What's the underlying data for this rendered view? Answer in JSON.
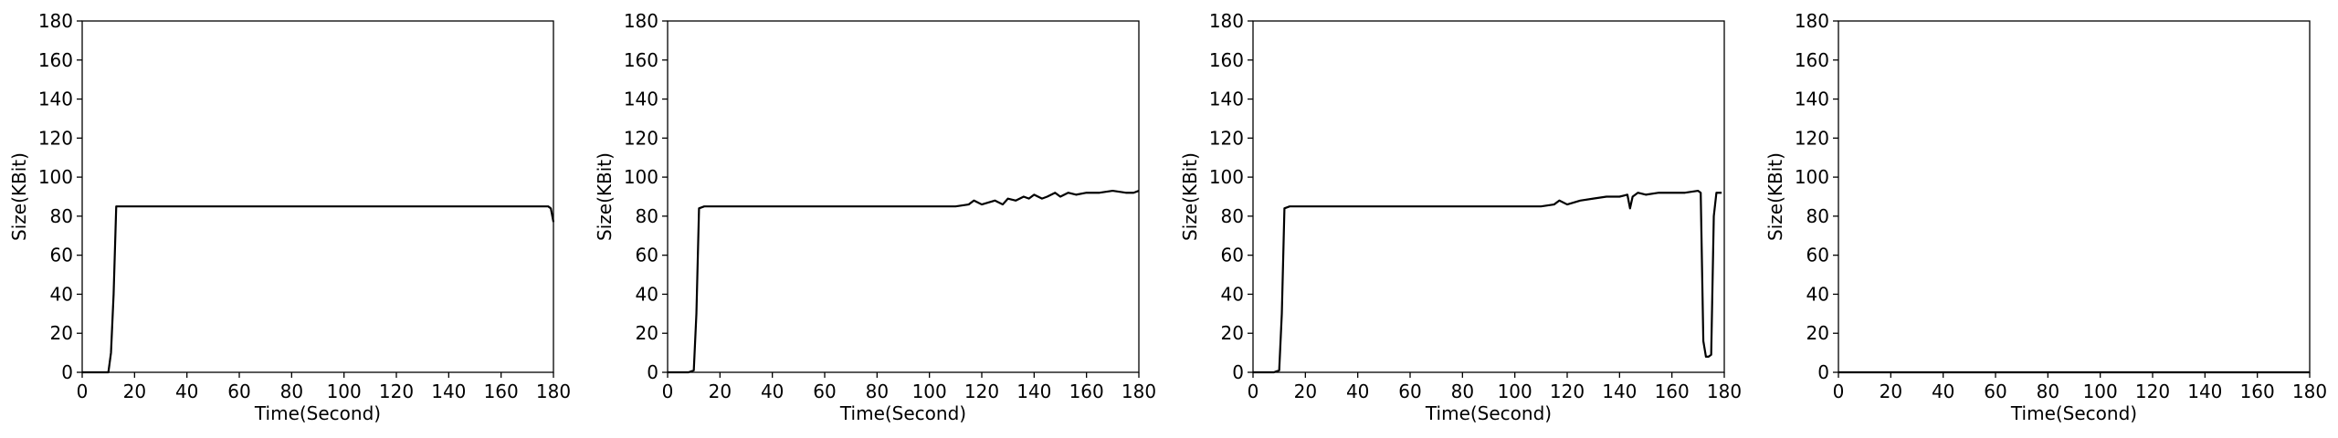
{
  "chart_data": [
    {
      "type": "line",
      "xlabel": "Time(Second)",
      "ylabel": "Size(KBit)",
      "xlim": [
        0,
        180
      ],
      "ylim": [
        0,
        180
      ],
      "xticks": [
        0,
        20,
        40,
        60,
        80,
        100,
        120,
        140,
        160,
        180
      ],
      "yticks": [
        0,
        20,
        40,
        60,
        80,
        100,
        120,
        140,
        160,
        180
      ],
      "grid": false,
      "series": [
        {
          "color": "#000000",
          "x": [
            0,
            2,
            4,
            6,
            8,
            10,
            11,
            12,
            13,
            20,
            40,
            60,
            80,
            100,
            120,
            140,
            160,
            175,
            178,
            179,
            180
          ],
          "y": [
            0,
            0,
            0,
            0,
            0,
            0,
            10,
            40,
            85,
            85,
            85,
            85,
            85,
            85,
            85,
            85,
            85,
            85,
            85,
            84,
            77
          ]
        }
      ]
    },
    {
      "type": "line",
      "xlabel": "Time(Second)",
      "ylabel": "Size(KBit)",
      "xlim": [
        0,
        180
      ],
      "ylim": [
        0,
        180
      ],
      "xticks": [
        0,
        20,
        40,
        60,
        80,
        100,
        120,
        140,
        160,
        180
      ],
      "yticks": [
        0,
        20,
        40,
        60,
        80,
        100,
        120,
        140,
        160,
        180
      ],
      "grid": false,
      "series": [
        {
          "color": "#000000",
          "x": [
            0,
            4,
            8,
            10,
            11,
            12,
            14,
            20,
            30,
            40,
            50,
            60,
            70,
            80,
            90,
            100,
            105,
            110,
            115,
            117,
            120,
            125,
            128,
            130,
            133,
            136,
            138,
            140,
            143,
            145,
            148,
            150,
            153,
            156,
            160,
            165,
            170,
            175,
            178,
            180
          ],
          "y": [
            0,
            0,
            0,
            1,
            30,
            84,
            85,
            85,
            85,
            85,
            85,
            85,
            85,
            85,
            85,
            85,
            85,
            85,
            86,
            88,
            86,
            88,
            86,
            89,
            88,
            90,
            89,
            91,
            89,
            90,
            92,
            90,
            92,
            91,
            92,
            92,
            93,
            92,
            92,
            93
          ]
        }
      ]
    },
    {
      "type": "line",
      "xlabel": "Time(Second)",
      "ylabel": "Size(KBit)",
      "xlim": [
        0,
        180
      ],
      "ylim": [
        0,
        180
      ],
      "xticks": [
        0,
        20,
        40,
        60,
        80,
        100,
        120,
        140,
        160,
        180
      ],
      "yticks": [
        0,
        20,
        40,
        60,
        80,
        100,
        120,
        140,
        160,
        180
      ],
      "grid": false,
      "series": [
        {
          "color": "#000000",
          "x": [
            0,
            4,
            8,
            10,
            11,
            12,
            14,
            20,
            40,
            60,
            80,
            100,
            110,
            115,
            117,
            120,
            125,
            130,
            135,
            140,
            143,
            144,
            145,
            147,
            150,
            155,
            160,
            165,
            170,
            171,
            172,
            173,
            174,
            175,
            176,
            177,
            178,
            179
          ],
          "y": [
            0,
            0,
            0,
            1,
            30,
            84,
            85,
            85,
            85,
            85,
            85,
            85,
            85,
            86,
            88,
            86,
            88,
            89,
            90,
            90,
            91,
            84,
            90,
            92,
            91,
            92,
            92,
            92,
            93,
            92,
            16,
            8,
            8,
            9,
            80,
            92,
            92,
            92
          ]
        }
      ]
    },
    {
      "type": "line",
      "xlabel": "Time(Second)",
      "ylabel": "Size(KBit)",
      "xlim": [
        0,
        180
      ],
      "ylim": [
        0,
        180
      ],
      "xticks": [
        0,
        20,
        40,
        60,
        80,
        100,
        120,
        140,
        160,
        180
      ],
      "yticks": [
        0,
        20,
        40,
        60,
        80,
        100,
        120,
        140,
        160,
        180
      ],
      "grid": false,
      "series": [
        {
          "color": "#000000",
          "x": [
            0,
            180
          ],
          "y": [
            0,
            0
          ]
        }
      ]
    }
  ]
}
